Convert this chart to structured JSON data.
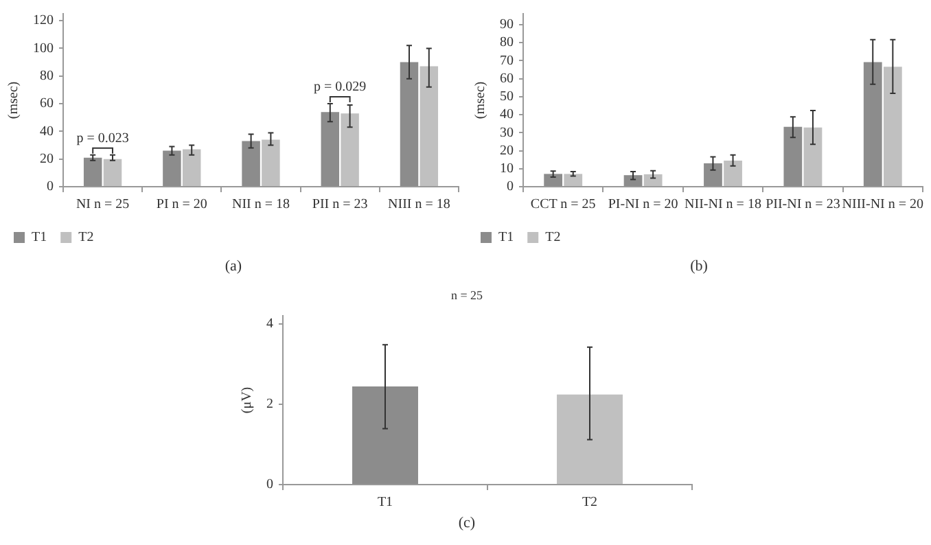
{
  "chart_data": [
    {
      "type": "bar",
      "ylabel": "(msec)",
      "categories": [
        "NI n = 25",
        "PI n = 20",
        "NII n = 18",
        "PII n = 23",
        "NIII n = 18"
      ],
      "ylim": [
        0,
        125
      ],
      "yticks": [
        0,
        20,
        40,
        60,
        80,
        100,
        120
      ],
      "grid": false,
      "legend": "bottom left",
      "series": [
        {
          "name": "T1",
          "color": "#8c8c8c",
          "values": [
            21,
            26,
            33,
            54,
            90
          ],
          "errors": [
            [
              19,
              23
            ],
            [
              23,
              29
            ],
            [
              28,
              38
            ],
            [
              47,
              60
            ],
            [
              78,
              102
            ]
          ]
        },
        {
          "name": "T2",
          "color": "#c0c0c0",
          "values": [
            20,
            27,
            34,
            53,
            87
          ],
          "errors": [
            [
              19,
              23
            ],
            [
              23,
              30
            ],
            [
              30,
              39
            ],
            [
              43,
              59
            ],
            [
              72,
              100
            ]
          ]
        }
      ],
      "annotations": [
        {
          "text": "p = 0.023",
          "x": "NI n = 25",
          "y": 21
        },
        {
          "text": "p = 0.029",
          "x": "PII n = 23",
          "y": 54
        },
        "(a)"
      ]
    },
    {
      "type": "bar",
      "ylabel": "(msec)",
      "categories": [
        "CCT n = 25",
        "PI-NI n = 20",
        "NII-NI n = 18",
        "PII-NI n = 23",
        "NIII-NI n = 20"
      ],
      "ylim": [
        0,
        96
      ],
      "yticks": [
        0,
        10,
        20,
        30,
        40,
        50,
        60,
        70,
        80,
        90
      ],
      "grid": false,
      "legend": "bottom left",
      "series": [
        {
          "name": "T1",
          "color": "#8c8c8c",
          "values": [
            7.1,
            6.4,
            13,
            33.2,
            69.1
          ],
          "errors": [
            [
              5.3,
              8.7
            ],
            [
              4,
              8.4
            ],
            [
              9.2,
              16.6
            ],
            [
              27.3,
              38.8
            ],
            [
              56.9,
              81.6
            ]
          ]
        },
        {
          "name": "T2",
          "color": "#c0c0c0",
          "values": [
            7.1,
            6.9,
            14.5,
            32.9,
            66.6
          ],
          "errors": [
            [
              5.9,
              8.4
            ],
            [
              4.8,
              8.9
            ],
            [
              11.5,
              17.6
            ],
            [
              23.5,
              42.3
            ],
            [
              51.8,
              81.6
            ]
          ]
        }
      ],
      "annotations": [
        "(b)"
      ]
    },
    {
      "type": "bar",
      "title": "n = 25",
      "ylabel": "(μV)",
      "categories": [
        "T1",
        "T2"
      ],
      "ylim": [
        0,
        4.2
      ],
      "yticks": [
        0,
        2,
        4
      ],
      "grid": false,
      "legend": false,
      "series": [
        {
          "colors": [
            "#8c8c8c",
            "#c0c0c0"
          ],
          "values": [
            2.44,
            2.24
          ],
          "errors": [
            [
              1.39,
              3.48
            ],
            [
              1.12,
              3.42
            ]
          ]
        }
      ],
      "annotations": [
        "(c)"
      ]
    }
  ]
}
